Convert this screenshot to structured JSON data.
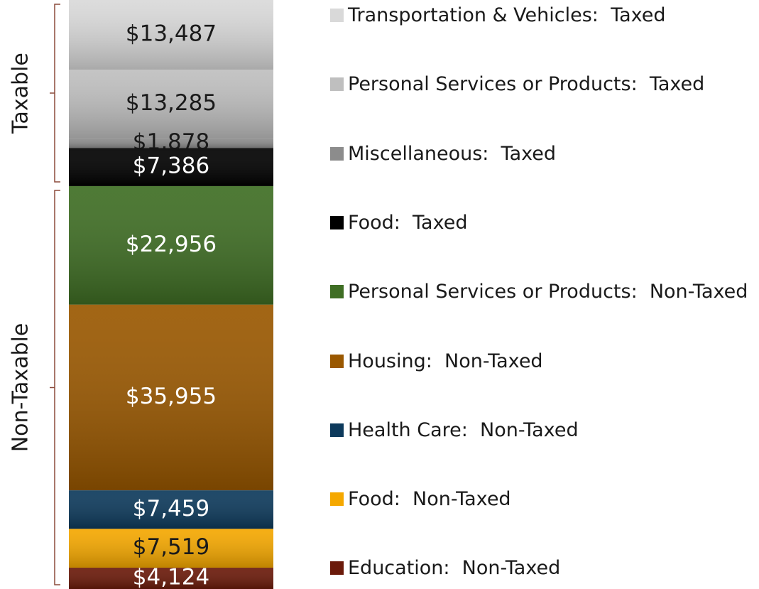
{
  "chart_data": {
    "type": "stacked_bar",
    "groups": [
      {
        "name": "Taxable",
        "series": [
          {
            "name": "Transportation & Vehicles:  Taxed",
            "color": "#d9d9d9",
            "label_color": "#1a1a1a",
            "values": [
              13487
            ],
            "value_labels": [
              "$13,487"
            ]
          },
          {
            "name": "Personal Services or Products:  Taxed",
            "color": "#bfbfbf",
            "label_color": "#1a1a1a",
            "values": [
              13285
            ],
            "value_labels": [
              "$13,285"
            ]
          },
          {
            "name": "Miscellaneous:  Taxed",
            "color": "#8c8c8c",
            "label_color": "#1a1a1a",
            "values": [
              1878
            ],
            "value_labels": [
              "$1,878"
            ]
          },
          {
            "name": "Food:  Taxed",
            "color": "#000000",
            "label_color": "#ffffff",
            "values": [
              7386
            ],
            "value_labels": [
              "$7,386"
            ]
          }
        ]
      },
      {
        "name": "Non-Taxable",
        "series": [
          {
            "name": "Personal Services or Products:  Non-Taxed",
            "color": "#3f6e24",
            "label_color": "#ffffff",
            "values": [
              22956
            ],
            "value_labels": [
              "$22,956"
            ]
          },
          {
            "name": "Housing:  Non-Taxed",
            "color": "#9a5800",
            "label_color": "#ffffff",
            "values": [
              35955
            ],
            "value_labels": [
              "$35,955"
            ]
          },
          {
            "name": "Health Care:  Non-Taxed",
            "color": "#0d3a5c",
            "label_color": "#ffffff",
            "values": [
              7459
            ],
            "value_labels": [
              "$7,459"
            ]
          },
          {
            "name": "Food:  Non-Taxed",
            "color": "#f5a800",
            "label_color": "#1a1a1a",
            "values": [
              7519
            ],
            "value_labels": [
              "$7,519"
            ]
          },
          {
            "name": "Education:  Non-Taxed",
            "color": "#6b1a0a",
            "label_color": "#ffffff",
            "values": [
              4124
            ],
            "value_labels": [
              "$4,124"
            ]
          }
        ]
      }
    ]
  }
}
